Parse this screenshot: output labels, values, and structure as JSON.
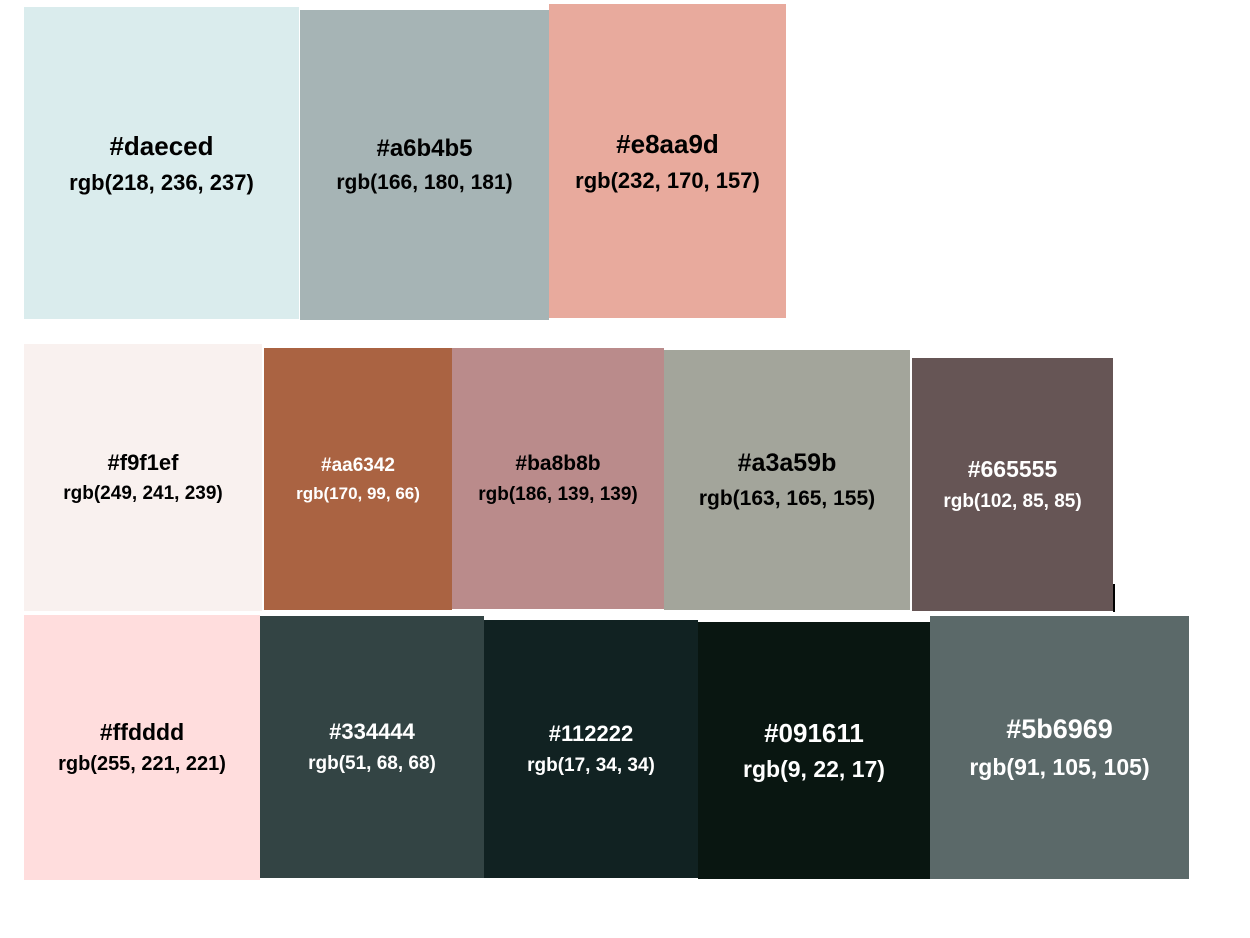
{
  "palette": {
    "swatches": [
      {
        "hex": "#daeced",
        "rgb": "rgb(218, 236, 237)",
        "color": "#daeced",
        "text_color": "#000000"
      },
      {
        "hex": "#a6b4b5",
        "rgb": "rgb(166, 180, 181)",
        "color": "#a6b4b5",
        "text_color": "#000000"
      },
      {
        "hex": "#e8aa9d",
        "rgb": "rgb(232, 170, 157)",
        "color": "#e8aa9d",
        "text_color": "#000000"
      },
      {
        "hex": "#f9f1ef",
        "rgb": "rgb(249, 241, 239)",
        "color": "#f9f1ef",
        "text_color": "#000000"
      },
      {
        "hex": "#aa6342",
        "rgb": "rgb(170, 99, 66)",
        "color": "#aa6342",
        "text_color": "#ffffff"
      },
      {
        "hex": "#ba8b8b",
        "rgb": "rgb(186, 139, 139)",
        "color": "#ba8b8b",
        "text_color": "#000000"
      },
      {
        "hex": "#a3a59b",
        "rgb": "rgb(163, 165, 155)",
        "color": "#a3a59b",
        "text_color": "#000000"
      },
      {
        "hex": "#665555",
        "rgb": "rgb(102, 85, 85)",
        "color": "#665555",
        "text_color": "#ffffff"
      },
      {
        "hex": "#ffdddd",
        "rgb": "rgb(255, 221, 221)",
        "color": "#ffdddd",
        "text_color": "#000000"
      },
      {
        "hex": "#334444",
        "rgb": "rgb(51, 68, 68)",
        "color": "#334444",
        "text_color": "#ffffff"
      },
      {
        "hex": "#112222",
        "rgb": "rgb(17, 34, 34)",
        "color": "#112222",
        "text_color": "#ffffff"
      },
      {
        "hex": "#091611",
        "rgb": "rgb(9, 22, 17)",
        "color": "#091611",
        "text_color": "#ffffff"
      },
      {
        "hex": "#5b6969",
        "rgb": "rgb(91, 105, 105)",
        "color": "#5b6969",
        "text_color": "#ffffff"
      }
    ]
  }
}
